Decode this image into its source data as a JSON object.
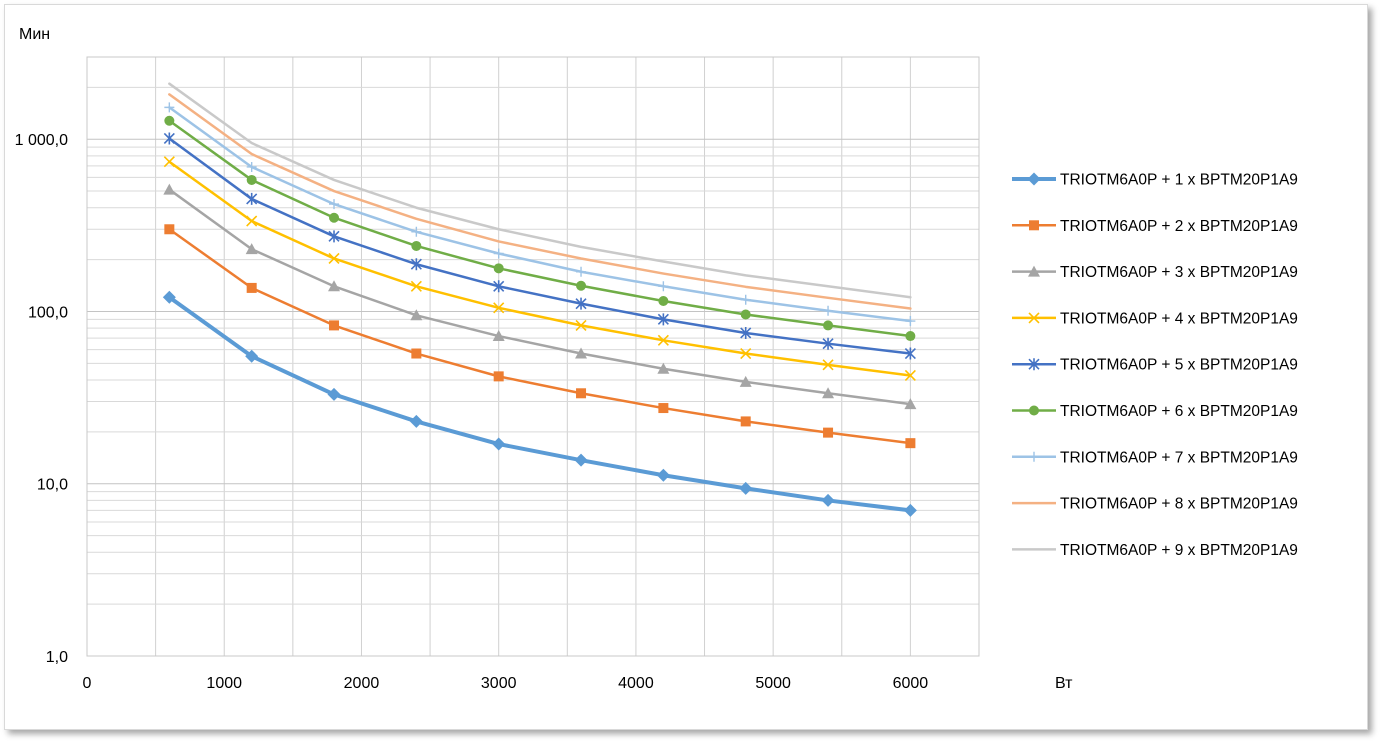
{
  "chart_data": {
    "type": "line",
    "title": "",
    "ylabel": "Мин",
    "xlabel": "Вт",
    "y_scale": "log",
    "ylim": [
      1,
      3000
    ],
    "xlim": [
      0,
      6500
    ],
    "x_ticks": [
      0,
      1000,
      2000,
      3000,
      4000,
      5000,
      6000
    ],
    "x_tick_labels": [
      "0",
      "1000",
      "2000",
      "3000",
      "4000",
      "5000",
      "6000"
    ],
    "y_ticks": [
      1,
      10,
      100,
      1000
    ],
    "y_tick_labels": [
      "1,0",
      "10,0",
      "100,0",
      "1 000,0"
    ],
    "grid": true,
    "legend_position": "right",
    "x": [
      600,
      1200,
      1800,
      2400,
      3000,
      3600,
      4200,
      4800,
      5400,
      6000
    ],
    "series": [
      {
        "name": "TRIOTM6A0P + 1 x BPTM20P1A9",
        "color": "#5b9bd5",
        "marker": "diamond",
        "width": 4,
        "values": [
          121,
          55,
          33,
          23,
          17,
          13.7,
          11.2,
          9.4,
          8.0,
          7.0
        ]
      },
      {
        "name": "TRIOTM6A0P + 2 x BPTM20P1A9",
        "color": "#ed7d31",
        "marker": "square",
        "width": 2.5,
        "values": [
          300,
          137,
          83,
          57,
          42,
          33.5,
          27.5,
          23,
          19.8,
          17.2
        ]
      },
      {
        "name": "TRIOTM6A0P + 3 x BPTM20P1A9",
        "color": "#a5a5a5",
        "marker": "triangle",
        "width": 2.5,
        "values": [
          510,
          230,
          140,
          95,
          72,
          57,
          46.5,
          39,
          33.5,
          29
        ]
      },
      {
        "name": "TRIOTM6A0P + 4 x BPTM20P1A9",
        "color": "#ffc000",
        "marker": "x",
        "width": 2.5,
        "values": [
          740,
          335,
          203,
          140,
          105,
          83,
          68,
          57,
          49,
          42.5
        ]
      },
      {
        "name": "TRIOTM6A0P + 5 x BPTM20P1A9",
        "color": "#4472c4",
        "marker": "star",
        "width": 2.5,
        "values": [
          1010,
          450,
          273,
          188,
          140,
          111,
          90,
          75,
          65,
          57
        ]
      },
      {
        "name": "TRIOTM6A0P + 6 x BPTM20P1A9",
        "color": "#70ad47",
        "marker": "circle",
        "width": 2.5,
        "values": [
          1280,
          580,
          350,
          240,
          178,
          141,
          115,
          96,
          83,
          72
        ]
      },
      {
        "name": "TRIOTM6A0P + 7 x BPTM20P1A9",
        "color": "#9dc3e6",
        "marker": "plus",
        "width": 2.5,
        "values": [
          1530,
          690,
          420,
          290,
          217,
          170,
          140,
          117,
          101,
          88
        ]
      },
      {
        "name": "TRIOTM6A0P + 8 x BPTM20P1A9",
        "color": "#f4b183",
        "marker": "none",
        "width": 2.5,
        "values": [
          1820,
          820,
          500,
          345,
          255,
          203,
          166,
          139,
          120,
          104
        ]
      },
      {
        "name": "TRIOTM6A0P + 9 x BPTM20P1A9",
        "color": "#c9c9c9",
        "marker": "none",
        "width": 2.5,
        "values": [
          2100,
          950,
          580,
          400,
          300,
          237,
          195,
          162,
          140,
          121
        ]
      }
    ]
  }
}
